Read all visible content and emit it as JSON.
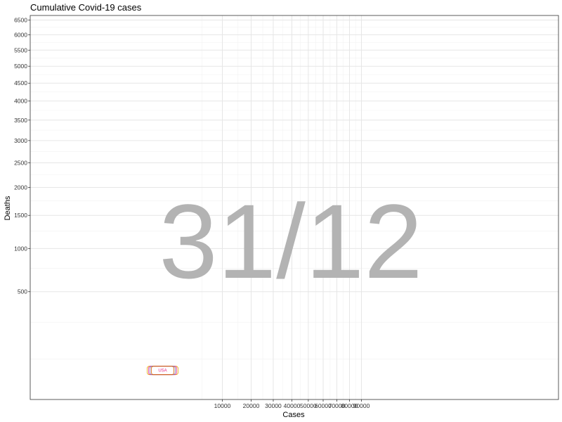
{
  "chart_data": {
    "type": "scatter",
    "title": "Cumulative Covid-19 cases",
    "xlabel": "Cases",
    "ylabel": "Deaths",
    "x_scale": "sqrt",
    "y_scale": "sqrt",
    "xlim": [
      0,
      90000
    ],
    "ylim": [
      0,
      6700
    ],
    "x_ticks": [
      10000,
      20000,
      30000,
      40000,
      50000,
      60000,
      70000,
      80000,
      90000
    ],
    "x_tick_labels": [
      "10000",
      "20000",
      "30000",
      "40000",
      "50000",
      "60000",
      "70000",
      "80000",
      "90000"
    ],
    "y_ticks": [
      500,
      1000,
      1500,
      2000,
      2500,
      3000,
      3500,
      4000,
      4500,
      5000,
      5500,
      6000,
      6500
    ],
    "y_tick_labels": [
      "500",
      "1000",
      "1500",
      "2000",
      "2500",
      "3000",
      "3500",
      "4000",
      "4500",
      "5000",
      "5500",
      "6000",
      "6500"
    ],
    "grid": true,
    "frame_label": "31/12",
    "points": [
      {
        "label": "USA",
        "x": 200,
        "y": 30,
        "color": "#e7298a"
      }
    ],
    "label_box_colors": [
      "#e6ab02",
      "#e7298a",
      "#7570b3",
      "#d95f02"
    ]
  }
}
